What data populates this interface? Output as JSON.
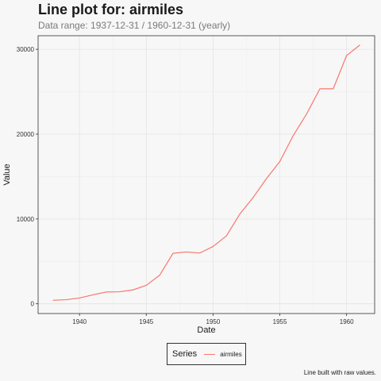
{
  "chart_data": {
    "type": "line",
    "title": "Line plot for: airmiles",
    "subtitle": "Data range: 1937-12-31 / 1960-12-31 (yearly)",
    "xlabel": "Date",
    "ylabel": "Value",
    "x_ticks": [
      1940,
      1945,
      1950,
      1955,
      1960
    ],
    "y_ticks": [
      0,
      10000,
      20000,
      30000
    ],
    "xlim": [
      1936.9,
      1962.1
    ],
    "ylim": [
      -1150,
      31600
    ],
    "grid": true,
    "legend_position": "bottom",
    "legend_title": "Series",
    "caption": "Line built with raw values.",
    "series": [
      {
        "name": "airmiles",
        "color": "#f8766d",
        "x": [
          1938,
          1939,
          1940,
          1941,
          1942,
          1943,
          1944,
          1945,
          1946,
          1947,
          1948,
          1949,
          1950,
          1951,
          1952,
          1953,
          1954,
          1955,
          1956,
          1957,
          1958,
          1959,
          1960,
          1961
        ],
        "values": [
          412,
          480,
          683,
          1052,
          1385,
          1418,
          1634,
          2178,
          3362,
          5948,
          6109,
          5981,
          6753,
          8003,
          10566,
          12528,
          14760,
          16769,
          19819,
          22362,
          25340,
          25343,
          29269,
          30514
        ]
      }
    ]
  }
}
